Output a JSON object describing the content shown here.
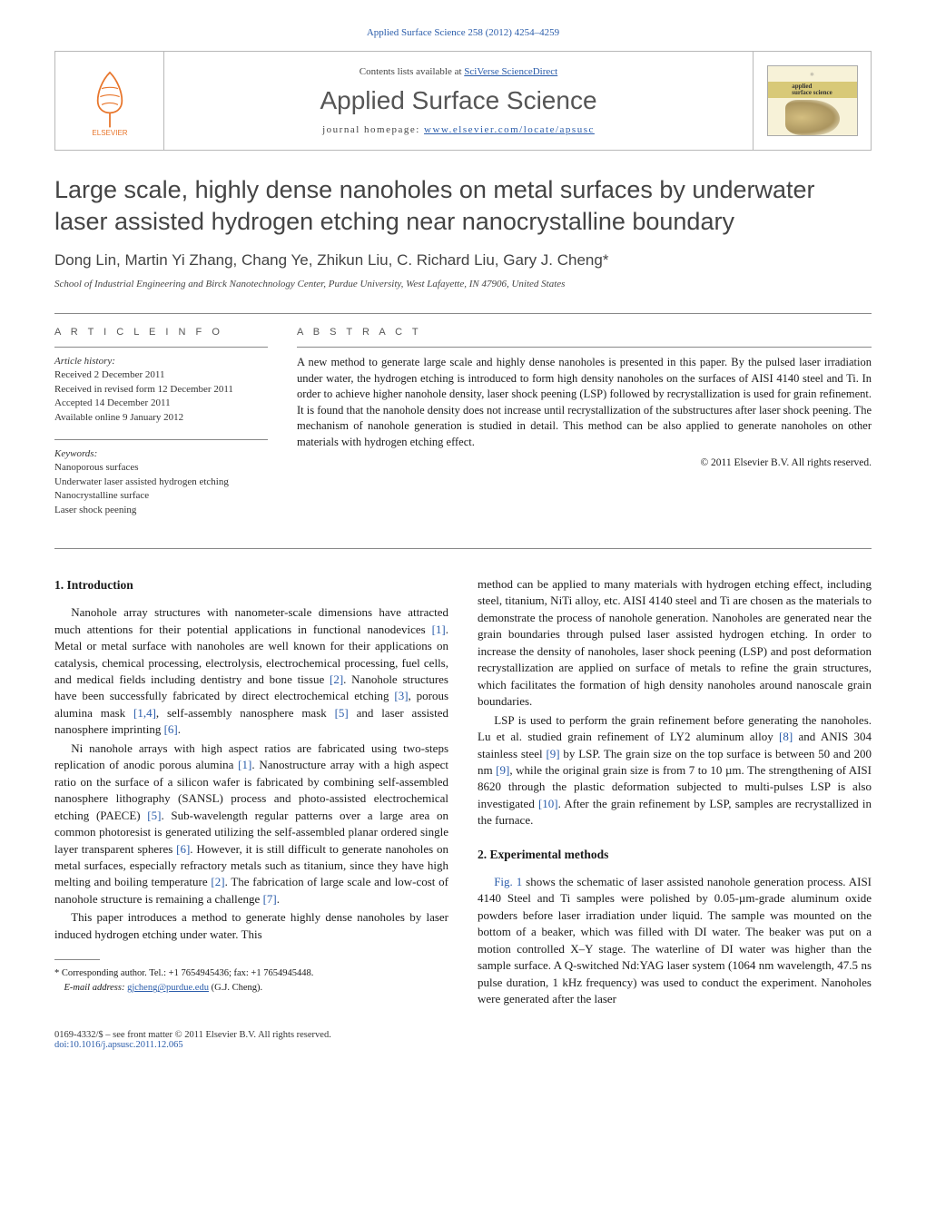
{
  "running_head": {
    "journal_ref": "Applied Surface Science 258 (2012) 4254–4259"
  },
  "contents_bar": {
    "lists_prefix": "Contents lists available at ",
    "lists_link": "SciVerse ScienceDirect",
    "journal_title": "Applied Surface Science",
    "homepage_prefix": "journal homepage: ",
    "homepage_url": "www.elsevier.com/locate/apsusc",
    "publisher": "ELSEVIER",
    "cover_label_top": "applied",
    "cover_label_bottom": "surface science"
  },
  "title": "Large scale, highly dense nanoholes on metal surfaces by underwater laser assisted hydrogen etching near nanocrystalline boundary",
  "authors": "Dong Lin, Martin Yi Zhang, Chang Ye, Zhikun Liu, C. Richard Liu, Gary J. Cheng*",
  "affiliation": "School of Industrial Engineering and Birck Nanotechnology Center, Purdue University, West Lafayette, IN 47906, United States",
  "article_info": {
    "head": "A R T I C L E    I N F O",
    "history_label": "Article history:",
    "received": "Received 2 December 2011",
    "revised": "Received in revised form 12 December 2011",
    "accepted": "Accepted 14 December 2011",
    "online": "Available online 9 January 2012",
    "keywords_label": "Keywords:",
    "k1": "Nanoporous surfaces",
    "k2": "Underwater laser assisted hydrogen etching",
    "k3": "Nanocrystalline surface",
    "k4": "Laser shock peening"
  },
  "abstract": {
    "head": "A B S T R A C T",
    "text": "A new method to generate large scale and highly dense nanoholes is presented in this paper. By the pulsed laser irradiation under water, the hydrogen etching is introduced to form high density nanoholes on the surfaces of AISI 4140 steel and Ti. In order to achieve higher nanohole density, laser shock peening (LSP) followed by recrystallization is used for grain refinement. It is found that the nanohole density does not increase until recrystallization of the substructures after laser shock peening. The mechanism of nanohole generation is studied in detail. This method can be also applied to generate nanoholes on other materials with hydrogen etching effect.",
    "copyright": "© 2011 Elsevier B.V. All rights reserved."
  },
  "sections": {
    "s1_head": "1.  Introduction",
    "s1p1": "Nanohole array structures with nanometer-scale dimensions have attracted much attentions for their potential applications in functional nanodevices [1]. Metal or metal surface with nanoholes are well known for their applications on catalysis, chemical processing, electrolysis, electrochemical processing, fuel cells, and medical fields including dentistry and bone tissue [2]. Nanohole structures have been successfully fabricated by direct electrochemical etching [3], porous alumina mask [1,4], self-assembly nanosphere mask [5] and laser assisted nanosphere imprinting [6].",
    "s1p2": "Ni nanohole arrays with high aspect ratios are fabricated using two-steps replication of anodic porous alumina [1]. Nanostructure array with a high aspect ratio on the surface of a silicon wafer is fabricated by combining self-assembled nanosphere lithography (SANSL) process and photo-assisted electrochemical etching (PAECE) [5]. Sub-wavelength regular patterns over a large area on common photoresist is generated utilizing the self-assembled planar ordered single layer transparent spheres [6]. However, it is still difficult to generate nanoholes on metal surfaces, especially refractory metals such as titanium, since they have high melting and boiling temperature [2]. The fabrication of large scale and low-cost of nanohole structure is remaining a challenge [7].",
    "s1p3": "This paper introduces a method to generate highly dense nanoholes by laser induced hydrogen etching under water. This",
    "s1p3b": "method can be applied to many materials with hydrogen etching effect, including steel, titanium, NiTi alloy, etc. AISI 4140 steel and Ti are chosen as the materials to demonstrate the process of nanohole generation. Nanoholes are generated near the grain boundaries through pulsed laser assisted hydrogen etching. In order to increase the density of nanoholes, laser shock peening (LSP) and post deformation recrystallization are applied on surface of metals to refine the grain structures, which facilitates the formation of high density nanoholes around nanoscale grain boundaries.",
    "s1p4": "LSP is used to perform the grain refinement before generating the nanoholes. Lu et al. studied grain refinement of LY2 aluminum alloy [8] and ANIS 304 stainless steel [9] by LSP. The grain size on the top surface is between 50 and 200 nm [9], while the original grain size is from 7 to 10 µm. The strengthening of AISI 8620 through the plastic deformation subjected to multi-pulses LSP is also investigated [10]. After the grain refinement by LSP, samples are recrystallized in the furnace.",
    "s2_head": "2.  Experimental methods",
    "s2p1": "Fig. 1 shows the schematic of laser assisted nanohole generation process. AISI 4140 Steel and Ti samples were polished by 0.05-µm-grade aluminum oxide powders before laser irradiation under liquid. The sample was mounted on the bottom of a beaker, which was filled with DI water. The beaker was put on a motion controlled X–Y stage. The waterline of DI water was higher than the sample surface. A Q-switched Nd:YAG laser system (1064 nm wavelength, 47.5 ns pulse duration, 1 kHz frequency) was used to conduct the experiment. Nanoholes were generated after the laser"
  },
  "footnote": {
    "corr_label": "* Corresponding author. Tel.: +1 7654945436; fax: +1 7654945448.",
    "email_label": "E-mail address:",
    "email": "gjcheng@purdue.edu",
    "email_suffix": "(G.J. Cheng)."
  },
  "footer": {
    "line1": "0169-4332/$ – see front matter © 2011 Elsevier B.V. All rights reserved.",
    "doi": "doi:10.1016/j.apsusc.2011.12.065"
  },
  "colors": {
    "link": "#2a5caa",
    "text": "#1a1a1a",
    "muted": "#555555",
    "rule": "#888888"
  }
}
